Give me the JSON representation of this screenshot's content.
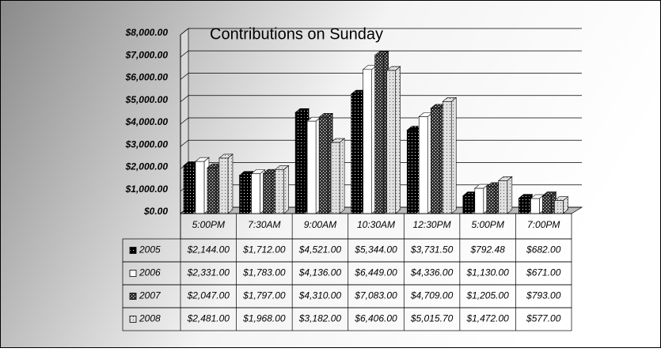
{
  "chart_data": {
    "type": "bar",
    "title": "Contributions on Sunday",
    "categories": [
      "5:00PM",
      "7:30AM",
      "9:00AM",
      "10:30AM",
      "12:30PM",
      "5:00PM",
      "7:00PM"
    ],
    "series": [
      {
        "name": "2005",
        "color": "#000000",
        "values": [
          2144,
          1712,
          4521,
          5344,
          3731.5,
          792.48,
          682
        ],
        "value_labels": [
          "$2,144.00",
          "$1,712.00",
          "$4,521.00",
          "$5,344.00",
          "$3,731.50",
          "$792.48",
          "$682.00"
        ]
      },
      {
        "name": "2006",
        "color": "#ffffff",
        "values": [
          2331,
          1783,
          4136,
          6449,
          4336,
          1130,
          671
        ],
        "value_labels": [
          "$2,331.00",
          "$1,783.00",
          "$4,136.00",
          "$6,449.00",
          "$4,336.00",
          "$1,130.00",
          "$671.00"
        ]
      },
      {
        "name": "2007",
        "color": "#333333",
        "values": [
          2047,
          1797,
          4310,
          7083,
          4709,
          1205,
          793
        ],
        "value_labels": [
          "$2,047.00",
          "$1,797.00",
          "$4,310.00",
          "$7,083.00",
          "$4,709.00",
          "$1,205.00",
          "$793.00"
        ]
      },
      {
        "name": "2008",
        "color": "#e0e0e0",
        "values": [
          2481,
          1968,
          3182,
          6406,
          5015.7,
          1472,
          577
        ],
        "value_labels": [
          "$2,481.00",
          "$1,968.00",
          "$3,182.00",
          "$6,406.00",
          "$5,015.70",
          "$1,472.00",
          "$577.00"
        ]
      }
    ],
    "ylim": [
      0,
      8000
    ],
    "yticks": [
      {
        "value": 0,
        "label": "$0.00"
      },
      {
        "value": 1000,
        "label": "$1,000.00"
      },
      {
        "value": 2000,
        "label": "$2,000.00"
      },
      {
        "value": 3000,
        "label": "$3,000.00"
      },
      {
        "value": 4000,
        "label": "$4,000.00"
      },
      {
        "value": 5000,
        "label": "$5,000.00"
      },
      {
        "value": 6000,
        "label": "$6,000.00"
      },
      {
        "value": 7000,
        "label": "$7,000.00"
      },
      {
        "value": 8000,
        "label": "$8,000.00"
      }
    ],
    "grid": true
  }
}
